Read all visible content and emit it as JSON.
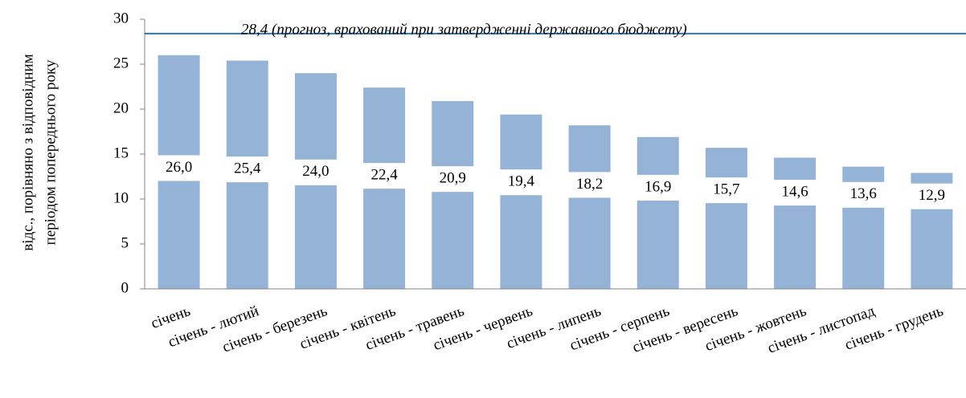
{
  "chart_data": {
    "type": "bar",
    "ylabel": [
      "відс., порівняно з відповідним",
      "періодом попереднього року"
    ],
    "categories": [
      "січень",
      "січень - лютий",
      "січень - березень",
      "січень - квітень",
      "січень - травень",
      "січень - червень",
      "січень - липень",
      "січень - серпень",
      "січень - вересень",
      "січень - жовтень",
      "січень - листопад",
      "січень - грудень"
    ],
    "values": [
      26.0,
      25.4,
      24.0,
      22.4,
      20.9,
      19.4,
      18.2,
      16.9,
      15.7,
      14.6,
      13.6,
      12.9
    ],
    "value_labels": [
      "26,0",
      "25,4",
      "24,0",
      "22,4",
      "20,9",
      "19,4",
      "18,2",
      "16,9",
      "15,7",
      "14,6",
      "13,6",
      "12,9"
    ],
    "color": "#95b3d7",
    "ylim": [
      0,
      30
    ],
    "yticks": [
      0,
      5,
      10,
      15,
      20,
      25,
      30
    ],
    "reference_line": {
      "value": 28.4,
      "label": "28,4 (прогноз, врахований при затвердженні державного бюджету)",
      "color": "#2e75b6"
    }
  }
}
